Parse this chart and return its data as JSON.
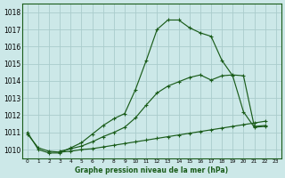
{
  "title": "Graphe pression niveau de la mer (hPa)",
  "bg_color": "#cce8e8",
  "grid_color": "#aacccc",
  "line_color": "#1a5c1a",
  "ylim": [
    1009.5,
    1018.5
  ],
  "yticks": [
    1010,
    1011,
    1012,
    1013,
    1014,
    1015,
    1016,
    1017,
    1018
  ],
  "x_labels": [
    "0",
    "1",
    "2",
    "3",
    "4",
    "5",
    "6",
    "7",
    "8",
    "9",
    "10",
    "11",
    "12",
    "13",
    "14",
    "15",
    "16",
    "17",
    "18",
    "19",
    "20",
    "21",
    "22",
    "23"
  ],
  "s1_x": [
    0,
    1,
    2,
    3,
    4,
    5,
    6,
    7,
    8,
    9,
    10,
    11,
    12,
    13,
    14,
    15,
    16,
    17,
    18,
    19,
    20,
    21,
    22
  ],
  "s1_y": [
    1011.0,
    1010.0,
    1009.8,
    1009.8,
    1010.1,
    1010.4,
    1010.9,
    1011.4,
    1011.8,
    1012.1,
    1013.5,
    1015.2,
    1017.0,
    1017.55,
    1017.55,
    1017.1,
    1016.8,
    1016.6,
    1015.2,
    1014.3,
    1012.2,
    1011.3,
    1011.35
  ],
  "s2_x": [
    0,
    1,
    2,
    3,
    4,
    5,
    6,
    7,
    8,
    9,
    10,
    11,
    12,
    13,
    14,
    15,
    16,
    17,
    18,
    19,
    20,
    21,
    22
  ],
  "s2_y": [
    1010.9,
    1010.1,
    1009.9,
    1009.85,
    1009.9,
    1010.0,
    1010.05,
    1010.15,
    1010.25,
    1010.35,
    1010.45,
    1010.55,
    1010.65,
    1010.75,
    1010.85,
    1010.95,
    1011.05,
    1011.15,
    1011.25,
    1011.35,
    1011.45,
    1011.55,
    1011.65
  ],
  "s3_x": [
    3,
    4,
    5,
    6,
    7,
    8,
    9,
    10,
    11,
    12,
    13,
    14,
    15,
    16,
    17,
    18,
    19,
    20,
    21,
    22
  ],
  "s3_y": [
    1009.9,
    1010.05,
    1010.2,
    1010.45,
    1010.75,
    1011.0,
    1011.3,
    1011.85,
    1012.6,
    1013.3,
    1013.7,
    1013.95,
    1014.2,
    1014.35,
    1014.05,
    1014.3,
    1014.35,
    1014.3,
    1011.35,
    1011.4
  ]
}
